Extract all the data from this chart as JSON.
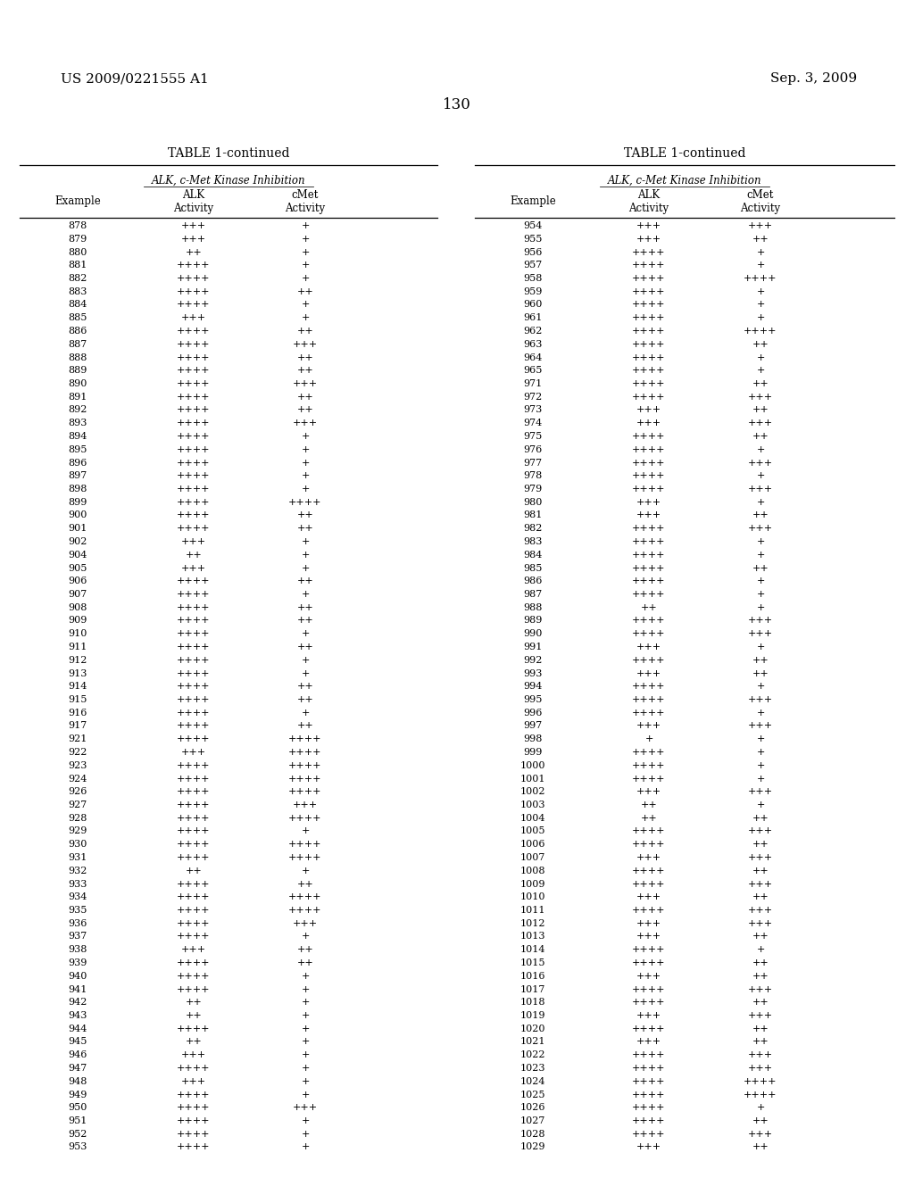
{
  "header_left": "US 2009/0221555 A1",
  "header_right": "Sep. 3, 2009",
  "page_number": "130",
  "table_title": "TABLE 1-continued",
  "subtitle": "ALK, c-Met Kinase Inhibition",
  "left_table": [
    [
      "878",
      "+++",
      "+"
    ],
    [
      "879",
      "+++",
      "+"
    ],
    [
      "880",
      "++",
      "+"
    ],
    [
      "881",
      "++++",
      "+"
    ],
    [
      "882",
      "++++",
      "+"
    ],
    [
      "883",
      "++++",
      "++"
    ],
    [
      "884",
      "++++",
      "+"
    ],
    [
      "885",
      "+++",
      "+"
    ],
    [
      "886",
      "++++",
      "++"
    ],
    [
      "887",
      "++++",
      "+++"
    ],
    [
      "888",
      "++++",
      "++"
    ],
    [
      "889",
      "++++",
      "++"
    ],
    [
      "890",
      "++++",
      "+++"
    ],
    [
      "891",
      "++++",
      "++"
    ],
    [
      "892",
      "++++",
      "++"
    ],
    [
      "893",
      "++++",
      "+++"
    ],
    [
      "894",
      "++++",
      "+"
    ],
    [
      "895",
      "++++",
      "+"
    ],
    [
      "896",
      "++++",
      "+"
    ],
    [
      "897",
      "++++",
      "+"
    ],
    [
      "898",
      "++++",
      "+"
    ],
    [
      "899",
      "++++",
      "++++"
    ],
    [
      "900",
      "++++",
      "++"
    ],
    [
      "901",
      "++++",
      "++"
    ],
    [
      "902",
      "+++",
      "+"
    ],
    [
      "904",
      "++",
      "+"
    ],
    [
      "905",
      "+++",
      "+"
    ],
    [
      "906",
      "++++",
      "++"
    ],
    [
      "907",
      "++++",
      "+"
    ],
    [
      "908",
      "++++",
      "++"
    ],
    [
      "909",
      "++++",
      "++"
    ],
    [
      "910",
      "++++",
      "+"
    ],
    [
      "911",
      "++++",
      "++"
    ],
    [
      "912",
      "++++",
      "+"
    ],
    [
      "913",
      "++++",
      "+"
    ],
    [
      "914",
      "++++",
      "++"
    ],
    [
      "915",
      "++++",
      "++"
    ],
    [
      "916",
      "++++",
      "+"
    ],
    [
      "917",
      "++++",
      "++"
    ],
    [
      "921",
      "++++",
      "++++"
    ],
    [
      "922",
      "+++",
      "++++"
    ],
    [
      "923",
      "++++",
      "++++"
    ],
    [
      "924",
      "++++",
      "++++"
    ],
    [
      "926",
      "++++",
      "++++"
    ],
    [
      "927",
      "++++",
      "+++"
    ],
    [
      "928",
      "++++",
      "++++"
    ],
    [
      "929",
      "++++",
      "+"
    ],
    [
      "930",
      "++++",
      "++++"
    ],
    [
      "931",
      "++++",
      "++++"
    ],
    [
      "932",
      "++",
      "+"
    ],
    [
      "933",
      "++++",
      "++"
    ],
    [
      "934",
      "++++",
      "++++"
    ],
    [
      "935",
      "++++",
      "++++"
    ],
    [
      "936",
      "++++",
      "+++"
    ],
    [
      "937",
      "++++",
      "+"
    ],
    [
      "938",
      "+++",
      "++"
    ],
    [
      "939",
      "++++",
      "++"
    ],
    [
      "940",
      "++++",
      "+"
    ],
    [
      "941",
      "++++",
      "+"
    ],
    [
      "942",
      "++",
      "+"
    ],
    [
      "943",
      "++",
      "+"
    ],
    [
      "944",
      "++++",
      "+"
    ],
    [
      "945",
      "++",
      "+"
    ],
    [
      "946",
      "+++",
      "+"
    ],
    [
      "947",
      "++++",
      "+"
    ],
    [
      "948",
      "+++",
      "+"
    ],
    [
      "949",
      "++++",
      "+"
    ],
    [
      "950",
      "++++",
      "+++"
    ],
    [
      "951",
      "++++",
      "+"
    ],
    [
      "952",
      "++++",
      "+"
    ],
    [
      "953",
      "++++",
      "+"
    ]
  ],
  "right_table": [
    [
      "954",
      "+++",
      "+++"
    ],
    [
      "955",
      "+++",
      "++"
    ],
    [
      "956",
      "++++",
      "+"
    ],
    [
      "957",
      "++++",
      "+"
    ],
    [
      "958",
      "++++",
      "++++"
    ],
    [
      "959",
      "++++",
      "+"
    ],
    [
      "960",
      "++++",
      "+"
    ],
    [
      "961",
      "++++",
      "+"
    ],
    [
      "962",
      "++++",
      "++++"
    ],
    [
      "963",
      "++++",
      "++"
    ],
    [
      "964",
      "++++",
      "+"
    ],
    [
      "965",
      "++++",
      "+"
    ],
    [
      "971",
      "++++",
      "++"
    ],
    [
      "972",
      "++++",
      "+++"
    ],
    [
      "973",
      "+++",
      "++"
    ],
    [
      "974",
      "+++",
      "+++"
    ],
    [
      "975",
      "++++",
      "++"
    ],
    [
      "976",
      "++++",
      "+"
    ],
    [
      "977",
      "++++",
      "+++"
    ],
    [
      "978",
      "++++",
      "+"
    ],
    [
      "979",
      "++++",
      "+++"
    ],
    [
      "980",
      "+++",
      "+"
    ],
    [
      "981",
      "+++",
      "++"
    ],
    [
      "982",
      "++++",
      "+++"
    ],
    [
      "983",
      "++++",
      "+"
    ],
    [
      "984",
      "++++",
      "+"
    ],
    [
      "985",
      "++++",
      "++"
    ],
    [
      "986",
      "++++",
      "+"
    ],
    [
      "987",
      "++++",
      "+"
    ],
    [
      "988",
      "++",
      "+"
    ],
    [
      "989",
      "++++",
      "+++"
    ],
    [
      "990",
      "++++",
      "+++"
    ],
    [
      "991",
      "+++",
      "+"
    ],
    [
      "992",
      "++++",
      "++"
    ],
    [
      "993",
      "+++",
      "++"
    ],
    [
      "994",
      "++++",
      "+"
    ],
    [
      "995",
      "++++",
      "+++"
    ],
    [
      "996",
      "++++",
      "+"
    ],
    [
      "997",
      "+++",
      "+++"
    ],
    [
      "998",
      "+",
      "+"
    ],
    [
      "999",
      "++++",
      "+"
    ],
    [
      "1000",
      "++++",
      "+"
    ],
    [
      "1001",
      "++++",
      "+"
    ],
    [
      "1002",
      "+++",
      "+++"
    ],
    [
      "1003",
      "++",
      "+"
    ],
    [
      "1004",
      "++",
      "++"
    ],
    [
      "1005",
      "++++",
      "+++"
    ],
    [
      "1006",
      "++++",
      "++"
    ],
    [
      "1007",
      "+++",
      "+++"
    ],
    [
      "1008",
      "++++",
      "++"
    ],
    [
      "1009",
      "++++",
      "+++"
    ],
    [
      "1010",
      "+++",
      "++"
    ],
    [
      "1011",
      "++++",
      "+++"
    ],
    [
      "1012",
      "+++",
      "+++"
    ],
    [
      "1013",
      "+++",
      "++"
    ],
    [
      "1014",
      "++++",
      "+"
    ],
    [
      "1015",
      "++++",
      "++"
    ],
    [
      "1016",
      "+++",
      "++"
    ],
    [
      "1017",
      "++++",
      "+++"
    ],
    [
      "1018",
      "++++",
      "++"
    ],
    [
      "1019",
      "+++",
      "+++"
    ],
    [
      "1020",
      "++++",
      "++"
    ],
    [
      "1021",
      "+++",
      "++"
    ],
    [
      "1022",
      "++++",
      "+++"
    ],
    [
      "1023",
      "++++",
      "+++"
    ],
    [
      "1024",
      "++++",
      "++++"
    ],
    [
      "1025",
      "++++",
      "++++"
    ],
    [
      "1026",
      "++++",
      "+"
    ],
    [
      "1027",
      "++++",
      "++"
    ],
    [
      "1028",
      "++++",
      "+++"
    ],
    [
      "1029",
      "+++",
      "++"
    ]
  ]
}
